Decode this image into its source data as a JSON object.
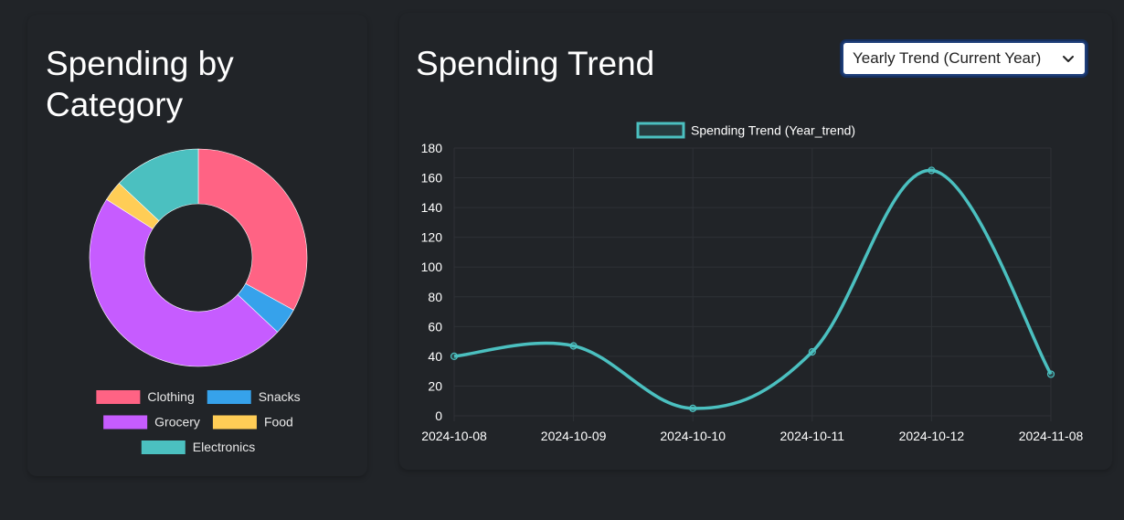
{
  "left_card": {
    "title": "Spending by Category"
  },
  "right_card": {
    "title": "Spending Trend",
    "select": {
      "selected": "Yearly Trend (Current Year)"
    }
  },
  "colors": {
    "background": "#212428",
    "grid": "#2e3136",
    "line": "#4bc0c0"
  },
  "chart_data": [
    {
      "type": "pie",
      "variant": "doughnut",
      "title": "",
      "categories": [
        "Clothing",
        "Snacks",
        "Grocery",
        "Food",
        "Electronics"
      ],
      "values": [
        33,
        4,
        47,
        3,
        13
      ],
      "colors": [
        "#ff6384",
        "#36a2eb",
        "#c65cff",
        "#ffcd56",
        "#4bc0c0"
      ],
      "legend": "bottom"
    },
    {
      "type": "line",
      "title": "",
      "categories": [
        "2024-10-08",
        "2024-10-09",
        "2024-10-10",
        "2024-10-11",
        "2024-10-12",
        "2024-11-08"
      ],
      "series": [
        {
          "name": "Spending Trend (Year_trend)",
          "values": [
            40,
            47,
            5,
            43,
            165,
            28
          ],
          "color": "#4bc0c0"
        }
      ],
      "y_ticks": [
        "0",
        "20",
        "40",
        "60",
        "80",
        "100",
        "120",
        "140",
        "160",
        "180"
      ],
      "ylim": [
        0,
        180
      ],
      "grid": true,
      "legend": "top",
      "xlabel": "",
      "ylabel": ""
    }
  ]
}
